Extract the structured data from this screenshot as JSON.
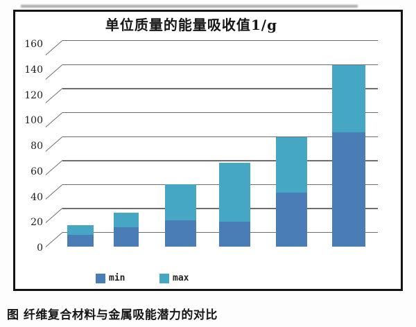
{
  "figure": {
    "caption": "图  纤维复合材料与金属吸能潜力的对比"
  },
  "chart_data": {
    "type": "bar",
    "stacked": true,
    "title": "单位质量的能量吸收值1/g",
    "xlabel": "",
    "ylabel": "",
    "ylim": [
      0,
      160
    ],
    "yticks": [
      0,
      20,
      40,
      60,
      80,
      100,
      120,
      140,
      160
    ],
    "grid": true,
    "legend_position": "bottom",
    "categories": [
      "",
      "",
      "",
      "",
      "",
      ""
    ],
    "bars": [
      {
        "min": 10,
        "max": 18
      },
      {
        "min": 16,
        "max": 28
      },
      {
        "min": 22,
        "max": 52
      },
      {
        "min": 21,
        "max": 70
      },
      {
        "min": 45,
        "max": 91
      },
      {
        "min": 95,
        "max": 151
      }
    ],
    "legend": [
      {
        "label": "min",
        "color": "#4a7cb5"
      },
      {
        "label": "max",
        "color": "#45a7c3"
      }
    ]
  }
}
